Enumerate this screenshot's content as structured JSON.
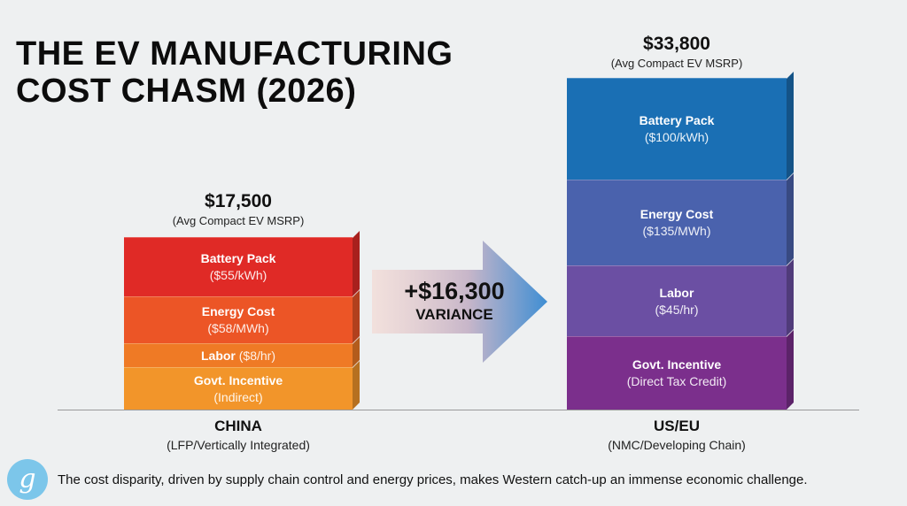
{
  "title_lines": [
    "THE EV MANUFACTURING",
    "COST CHASM (2026)"
  ],
  "chart_data": {
    "type": "bar",
    "stacked": true,
    "title": "THE EV MANUFACTURING COST CHASM (2026)",
    "categories": [
      "CHINA",
      "US/EU"
    ],
    "category_subtitles": [
      "(LFP/Vertically Integrated)",
      "(NMC/Developing Chain)"
    ],
    "totals": [
      17500,
      33800
    ],
    "total_labels": [
      "$17,500",
      "$33,800"
    ],
    "total_sublabel": "(Avg Compact EV MSRP)",
    "segments": [
      [
        {
          "name": "Battery Pack",
          "detail": "($55/kWh)",
          "color": "#e02a26"
        },
        {
          "name": "Energy Cost",
          "detail": "($58/MWh)",
          "color": "#ec5526"
        },
        {
          "name": "Labor",
          "detail": "($8/hr)",
          "color": "#ef7a25"
        },
        {
          "name": "Govt. Incentive",
          "detail": "(Indirect)",
          "color": "#f2952a"
        }
      ],
      [
        {
          "name": "Battery Pack",
          "detail": "($100/kWh)",
          "color": "#1a6fb4"
        },
        {
          "name": "Energy Cost",
          "detail": "($135/MWh)",
          "color": "#4a62ad"
        },
        {
          "name": "Labor",
          "detail": "($45/hr)",
          "color": "#6b4fa3"
        },
        {
          "name": "Govt. Incentive",
          "detail": "(Direct Tax Credit)",
          "color": "#7b2f8c"
        }
      ]
    ],
    "variance": {
      "amount": "+$16,300",
      "label": "VARIANCE"
    }
  },
  "caption": "The cost disparity, driven by supply chain control and energy prices, makes Western catch-up an immense economic challenge.",
  "logo_icon": "script-g-logo"
}
